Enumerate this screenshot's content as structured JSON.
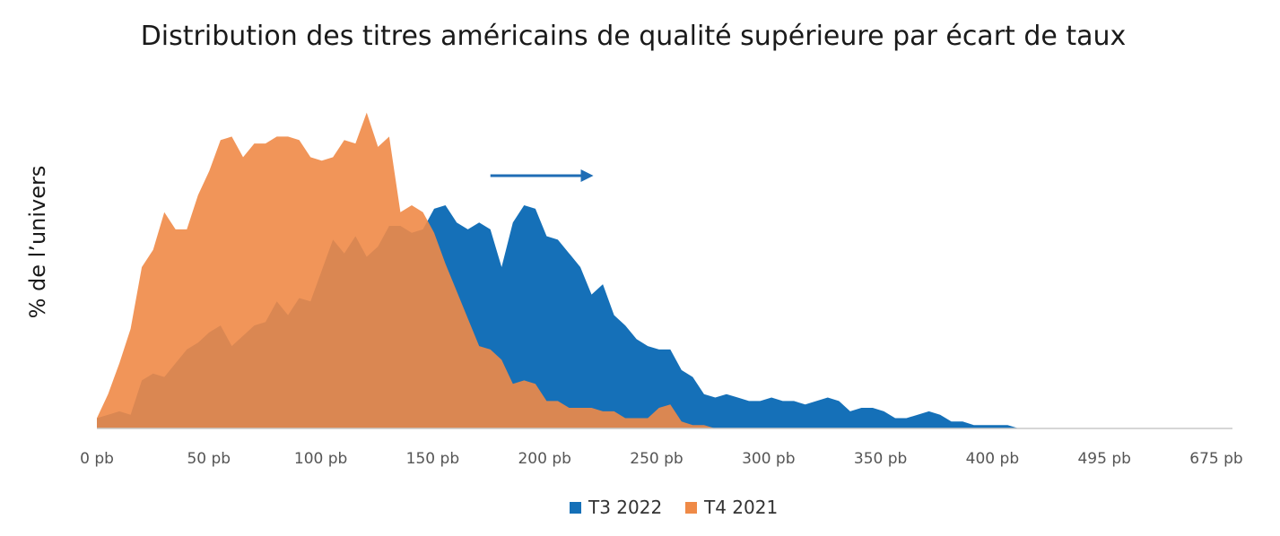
{
  "chart_data": {
    "type": "area",
    "title": "Distribution des titres américains de qualité supérieure par écart de taux",
    "ylabel": "% de l’univers",
    "xlabel": "",
    "x_tick_labels": [
      "0 pb",
      "50 pb",
      "100 pb",
      "150 pb",
      "200 pb",
      "250 pb",
      "300 pb",
      "350 pb",
      "400 pb",
      "495 pb",
      "675 pb"
    ],
    "legend": {
      "position": "bottom-center"
    },
    "grid": false,
    "annotations": [
      {
        "type": "arrow",
        "direction": "right",
        "from_x": 175,
        "to_x": 220,
        "color": "#1f6db5"
      }
    ],
    "xlim": [
      0,
      505
    ],
    "ylim": [
      0,
      100
    ],
    "series": [
      {
        "name": "T3 2022",
        "color": "#1570b8",
        "x": [
          0,
          5,
          10,
          15,
          20,
          25,
          30,
          35,
          40,
          45,
          50,
          55,
          60,
          65,
          70,
          75,
          80,
          85,
          90,
          95,
          100,
          105,
          110,
          115,
          120,
          125,
          130,
          135,
          140,
          145,
          150,
          155,
          160,
          165,
          170,
          175,
          180,
          185,
          190,
          195,
          200,
          205,
          210,
          215,
          220,
          225,
          230,
          235,
          240,
          245,
          250,
          255,
          260,
          265,
          270,
          275,
          280,
          285,
          290,
          295,
          300,
          305,
          310,
          315,
          320,
          325,
          330,
          335,
          340,
          345,
          350,
          355,
          360,
          365,
          370,
          375,
          380,
          385,
          390,
          395,
          400,
          405,
          410,
          415,
          420,
          425,
          430,
          435,
          440,
          445,
          450,
          455,
          460,
          465,
          470,
          475,
          480,
          485,
          490,
          495,
          500,
          505
        ],
        "values": [
          3,
          4,
          5,
          4,
          14,
          16,
          15,
          19,
          23,
          25,
          28,
          30,
          24,
          27,
          30,
          31,
          37,
          33,
          38,
          37,
          46,
          55,
          51,
          56,
          50,
          53,
          59,
          59,
          57,
          58,
          64,
          65,
          60,
          58,
          60,
          58,
          47,
          60,
          65,
          64,
          56,
          55,
          51,
          47,
          39,
          42,
          33,
          30,
          26,
          24,
          23,
          23,
          17,
          15,
          10,
          9,
          10,
          9,
          8,
          8,
          9,
          8,
          8,
          7,
          8,
          9,
          8,
          5,
          6,
          6,
          5,
          3,
          3,
          4,
          5,
          4,
          2,
          2,
          1,
          1,
          1,
          1,
          0,
          0,
          0,
          0,
          0,
          0,
          0,
          0,
          0,
          0,
          0,
          0,
          0,
          0,
          0,
          0,
          0,
          0,
          0,
          0
        ]
      },
      {
        "name": "T4 2021",
        "color": "#ef8a47",
        "x": [
          0,
          5,
          10,
          15,
          20,
          25,
          30,
          35,
          40,
          45,
          50,
          55,
          60,
          65,
          70,
          75,
          80,
          85,
          90,
          95,
          100,
          105,
          110,
          115,
          120,
          125,
          130,
          135,
          140,
          145,
          150,
          155,
          160,
          165,
          170,
          175,
          180,
          185,
          190,
          195,
          200,
          205,
          210,
          215,
          220,
          225,
          230,
          235,
          240,
          245,
          250,
          255,
          260,
          265,
          270,
          275,
          280,
          285,
          290,
          295,
          300,
          305,
          310,
          315,
          320,
          325,
          330,
          335,
          340,
          345,
          350,
          355,
          360,
          365,
          370,
          375,
          380,
          385,
          390,
          395,
          400,
          405,
          410,
          415,
          420,
          425,
          430,
          435,
          440,
          445,
          450,
          455,
          460,
          465,
          470,
          475,
          480,
          485,
          490,
          495,
          500,
          505
        ],
        "values": [
          3,
          10,
          19,
          29,
          47,
          52,
          63,
          58,
          58,
          68,
          75,
          84,
          85,
          79,
          83,
          83,
          85,
          85,
          84,
          79,
          78,
          79,
          84,
          83,
          92,
          82,
          85,
          63,
          65,
          63,
          57,
          48,
          40,
          32,
          24,
          23,
          20,
          13,
          14,
          13,
          8,
          8,
          6,
          6,
          6,
          5,
          5,
          3,
          3,
          3,
          6,
          7,
          2,
          1,
          1,
          0,
          0,
          0,
          0,
          0,
          0,
          0,
          0,
          0,
          0,
          0,
          0,
          0,
          0,
          0,
          0,
          0,
          0,
          0,
          0,
          0,
          0,
          0,
          0,
          0,
          0,
          0,
          0,
          0,
          0,
          0,
          0,
          0,
          0,
          0,
          0,
          0,
          0,
          0,
          0,
          0,
          0,
          0,
          0,
          0,
          0,
          0
        ]
      }
    ]
  }
}
